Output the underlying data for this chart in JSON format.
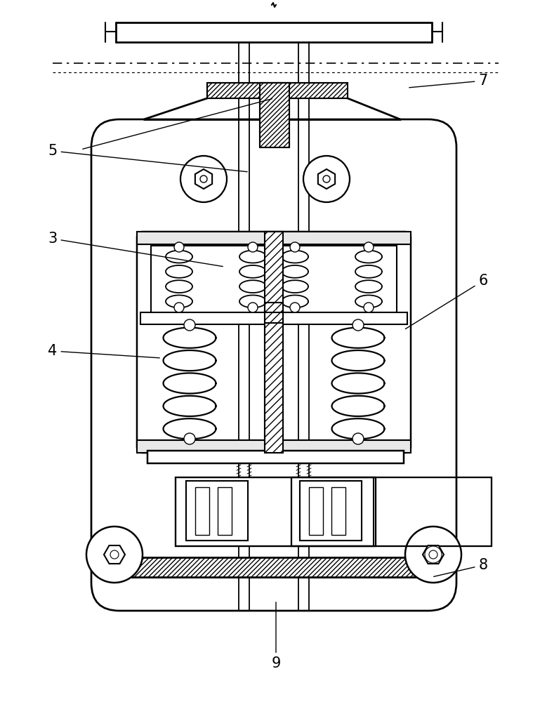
{
  "bg_color": "#ffffff",
  "lc": "#000000",
  "lw": 1.5,
  "figsize": [
    7.79,
    10.0
  ],
  "dpi": 100,
  "labels": [
    "3",
    "4",
    "5",
    "6",
    "7",
    "8",
    "9"
  ],
  "label_positions_x": [
    75,
    75,
    75,
    688,
    688,
    688,
    393
  ],
  "label_positions_y": [
    660,
    500,
    785,
    600,
    885,
    195,
    55
  ],
  "arrow_targets_x": [
    320,
    230,
    355,
    575,
    580,
    615,
    393
  ],
  "arrow_targets_y": [
    620,
    490,
    755,
    530,
    875,
    178,
    145
  ],
  "label_fontsize": 15
}
